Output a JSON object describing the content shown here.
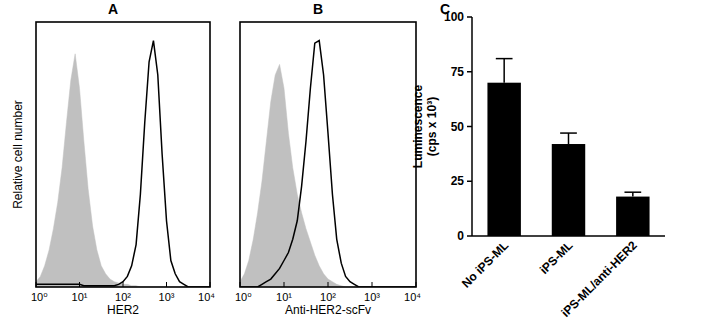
{
  "chart_data": [
    {
      "type": "line",
      "title": "A",
      "x_label": "HER2",
      "y_label": "Relative cell number",
      "log": "x",
      "tick_labels": "x",
      "xlim": [
        1,
        10000
      ],
      "xticks": [
        {
          "value": 1,
          "label": "10⁰"
        },
        {
          "value": 10,
          "label": "10¹"
        },
        {
          "value": 100,
          "label": "10²"
        },
        {
          "value": 1000,
          "label": "10³"
        },
        {
          "value": 10000,
          "label": "10⁴"
        }
      ],
      "ylim": [
        0,
        100
      ],
      "x": [
        1,
        1.26,
        1.58,
        2,
        2.51,
        3.16,
        3.98,
        5.01,
        6.31,
        7.94,
        10,
        12.6,
        15.8,
        20,
        25.1,
        31.6,
        39.8,
        50.1,
        63.1,
        79.4,
        100,
        126,
        158,
        200,
        251,
        316,
        398,
        501,
        631,
        794,
        1000,
        1259,
        1585,
        1995,
        2512,
        3162,
        3981,
        5012,
        6310,
        7943,
        10000
      ],
      "series": [
        {
          "type": "area",
          "color": "#c0c0c0",
          "values": [
            2,
            4,
            8,
            14,
            22,
            32,
            45,
            62,
            78,
            88,
            75,
            55,
            37,
            23,
            14,
            8,
            5,
            3,
            2,
            1.5,
            1,
            1,
            0.5,
            0.5,
            0,
            0,
            0,
            0,
            0,
            0,
            0,
            0,
            0,
            0,
            0,
            0,
            0,
            0,
            0,
            0,
            0
          ]
        },
        {
          "type": "line",
          "color": "#000000",
          "values": [
            1,
            1,
            1,
            1,
            1,
            1,
            1,
            1,
            1,
            1,
            1,
            0.5,
            0.5,
            0.5,
            0.5,
            0.5,
            0.5,
            0.5,
            0.5,
            1,
            2,
            4,
            8,
            16,
            35,
            62,
            85,
            93,
            80,
            50,
            25,
            10,
            5,
            2,
            1,
            0,
            0,
            0,
            0,
            0,
            0
          ]
        }
      ]
    },
    {
      "type": "line",
      "title": "B",
      "x_label": "Anti-HER2-scFv",
      "log": "x",
      "tick_labels": "x",
      "xlim": [
        1,
        10000
      ],
      "xticks": [
        {
          "value": 1,
          "label": "10⁰"
        },
        {
          "value": 10,
          "label": "10¹"
        },
        {
          "value": 100,
          "label": "10²"
        },
        {
          "value": 1000,
          "label": "10³"
        },
        {
          "value": 10000,
          "label": "10⁴"
        }
      ],
      "ylim": [
        0,
        100
      ],
      "x": [
        1,
        1.26,
        1.58,
        2,
        2.51,
        3.16,
        3.98,
        5.01,
        6.31,
        7.94,
        10,
        12.6,
        15.8,
        20,
        25.1,
        31.6,
        39.8,
        50.1,
        63.1,
        79.4,
        100,
        126,
        158,
        200,
        251,
        316,
        398,
        501,
        631,
        794,
        1000,
        1259,
        1585,
        1995,
        2512,
        3162,
        3981,
        5012,
        6310,
        7943,
        10000
      ],
      "series": [
        {
          "type": "area",
          "color": "#c0c0c0",
          "values": [
            2,
            5,
            10,
            18,
            28,
            40,
            55,
            70,
            80,
            84,
            75,
            58,
            45,
            35,
            28,
            22,
            17,
            12,
            8,
            5,
            3,
            2,
            1,
            0.5,
            0,
            0,
            0,
            0,
            0,
            0,
            0,
            0,
            0,
            0,
            0,
            0,
            0,
            0,
            0,
            0,
            0
          ]
        },
        {
          "type": "line",
          "color": "#000000",
          "values": [
            0,
            0,
            0,
            0,
            0,
            1,
            2,
            3,
            5,
            7,
            10,
            13,
            18,
            25,
            38,
            55,
            75,
            92,
            93,
            80,
            58,
            35,
            18,
            9,
            4,
            2,
            1,
            0,
            0,
            0,
            0,
            0,
            0,
            0,
            0,
            0,
            0,
            0,
            0,
            0,
            0
          ]
        }
      ]
    },
    {
      "type": "bar",
      "title": "C",
      "y_label": [
        "Luminescence",
        "(cps x 10³)"
      ],
      "categories": [
        "No iPS-ML",
        "iPS-ML",
        "iPS-ML/anti-HER2"
      ],
      "values": [
        70,
        42,
        18
      ],
      "errors": [
        11,
        5,
        2
      ],
      "color": "#000000",
      "ylim": [
        0,
        100
      ],
      "yticks": [
        0,
        25,
        50,
        75,
        100
      ]
    }
  ]
}
